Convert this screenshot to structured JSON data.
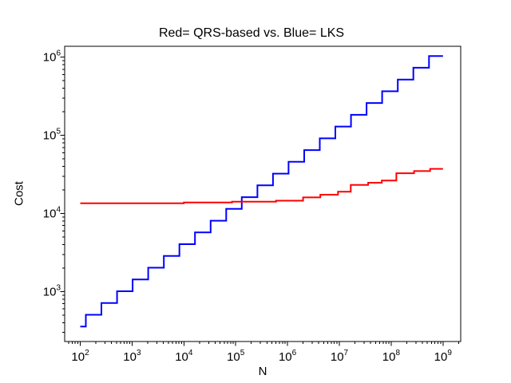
{
  "figure": {
    "title": "Red= QRS-based vs. Blue= LKS",
    "xlabel": "N",
    "ylabel": "Cost"
  },
  "chart_data": {
    "type": "line",
    "subtype": "log-log staircase comparison plot",
    "title": "Red= QRS-based vs. Blue= LKS",
    "xlabel": "N",
    "ylabel": "Cost",
    "x_scale": "log",
    "y_scale": "log",
    "xlim": [
      50,
      2200000000
    ],
    "ylim": [
      230,
      1380000
    ],
    "x_major_tick_exponents": [
      2,
      3,
      4,
      5,
      6,
      7,
      8,
      9
    ],
    "y_major_tick_exponents": [
      3,
      4,
      5,
      6
    ],
    "grid": false,
    "legend": "no legend box; mapping given in title (red = QRS-based, blue = LKS)",
    "tick_label_base": "10",
    "series": [
      {
        "name": "LKS",
        "color": "#0000ff",
        "style": "step",
        "description": "cost ~ 31.6*sqrt(N), quantized: steps up by factor sqrt(2) at each power of 2 in N",
        "steps": [
          [
            100,
            128,
            358
          ],
          [
            128,
            256,
            506
          ],
          [
            256,
            512,
            716
          ],
          [
            512,
            1024,
            1012
          ],
          [
            1024,
            2048,
            1431
          ],
          [
            2048,
            4096,
            2024
          ],
          [
            4096,
            8192,
            2862
          ],
          [
            8192,
            16384,
            4048
          ],
          [
            16384,
            32768,
            5724
          ],
          [
            32768,
            65536,
            8095
          ],
          [
            65536,
            131072,
            11449
          ],
          [
            131072,
            262144,
            16191
          ],
          [
            262144,
            524288,
            22897
          ],
          [
            524288,
            1048576,
            32382
          ],
          [
            1048576,
            2097152,
            45795
          ],
          [
            2097152,
            4194304,
            64763
          ],
          [
            4194304,
            8388608,
            91589
          ],
          [
            8388608,
            16777216,
            129527
          ],
          [
            16777216,
            33554432,
            183179
          ],
          [
            33554432,
            67108864,
            259054
          ],
          [
            67108864,
            134217728,
            366357
          ],
          [
            134217728,
            268435456,
            518107
          ],
          [
            268435456,
            536870912,
            732715
          ],
          [
            536870912,
            1000000000,
            1036214
          ]
        ]
      },
      {
        "name": "QRS-based",
        "color": "#ff0000",
        "style": "step",
        "description": "nearly flat ~1.35e4 for small N, slow stepwise growth to ~3.7e4 at N=1e9",
        "steps": [
          [
            100,
            10000,
            13520
          ],
          [
            10000,
            85000,
            13810
          ],
          [
            85000,
            600000,
            14140
          ],
          [
            600000,
            2000000,
            14580
          ],
          [
            2000000,
            4300000,
            16070
          ],
          [
            4300000,
            9400000,
            17410
          ],
          [
            9400000,
            16600000,
            19030
          ],
          [
            16600000,
            36000000,
            23240
          ],
          [
            36000000,
            66000000,
            24770
          ],
          [
            66000000,
            126000000,
            26460
          ],
          [
            126000000,
            277000000,
            32730
          ],
          [
            277000000,
            565000000,
            34890
          ],
          [
            565000000,
            1000000000,
            37240
          ]
        ]
      }
    ],
    "crossing_point_approx": {
      "N": 140000,
      "cost": 14000
    }
  }
}
